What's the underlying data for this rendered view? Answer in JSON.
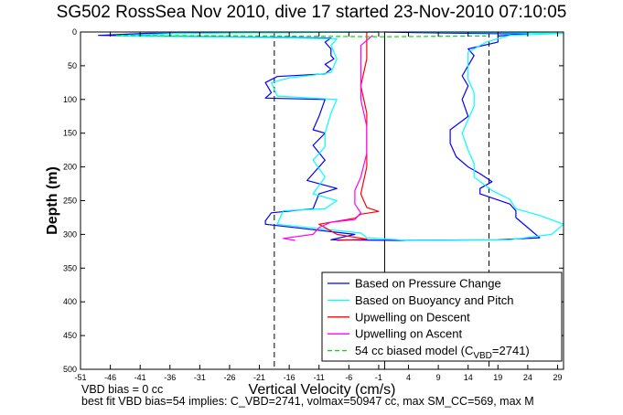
{
  "chart_data": {
    "type": "line",
    "title": "SG502 RossSea Nov 2010, dive 17 started 23-Nov-2010 07:10:05",
    "xlabel": "Vertical Velocity (cm/s)",
    "ylabel": "Depth (m)",
    "xlim": [
      -51,
      30
    ],
    "ylim": [
      500,
      0
    ],
    "y_reversed": true,
    "xticks": [
      -51,
      -46,
      -41,
      -36,
      -31,
      -26,
      -21,
      -16,
      -11,
      -6,
      -1,
      4,
      9,
      14,
      19,
      24,
      29
    ],
    "yticks": [
      0,
      50,
      100,
      150,
      200,
      250,
      300,
      350,
      400,
      450,
      500
    ],
    "grid": false,
    "legend_location": "bottom-right",
    "reference_lines": [
      {
        "x": -18.5,
        "style": "dashed"
      },
      {
        "x": 17.5,
        "style": "dashed"
      },
      {
        "x": 0,
        "style": "solid"
      }
    ],
    "series": [
      {
        "name": "Based on Pressure Change",
        "color": "#0000ff",
        "style": "solid",
        "points": [
          [
            -1,
            0
          ],
          [
            -40,
            2
          ],
          [
            -48,
            5
          ],
          [
            -28,
            7
          ],
          [
            -9,
            9
          ],
          [
            -10,
            15
          ],
          [
            -9,
            25
          ],
          [
            -9,
            35
          ],
          [
            -8.5,
            40
          ],
          [
            -10,
            48
          ],
          [
            -9,
            55
          ],
          [
            -10,
            62
          ],
          [
            -18,
            66
          ],
          [
            -20,
            75
          ],
          [
            -19,
            90
          ],
          [
            -20,
            98
          ],
          [
            -10,
            100
          ],
          [
            -11,
            125
          ],
          [
            -12,
            145
          ],
          [
            -10,
            150
          ],
          [
            -12,
            168
          ],
          [
            -10,
            190
          ],
          [
            -12,
            210
          ],
          [
            -13,
            220
          ],
          [
            -8,
            232
          ],
          [
            -11,
            240
          ],
          [
            -12,
            262
          ],
          [
            -19,
            268
          ],
          [
            -20,
            280
          ],
          [
            -20,
            285
          ],
          [
            -5,
            300
          ],
          [
            -9,
            308
          ],
          [
            2,
            309
          ],
          [
            19,
            308
          ],
          [
            26,
            305
          ],
          [
            24,
            290
          ],
          [
            22,
            275
          ],
          [
            22,
            265
          ],
          [
            21,
            255
          ],
          [
            16,
            240
          ],
          [
            16,
            232
          ],
          [
            18,
            222
          ],
          [
            16,
            210
          ],
          [
            14,
            200
          ],
          [
            12,
            185
          ],
          [
            11,
            165
          ],
          [
            11,
            145
          ],
          [
            14,
            125
          ],
          [
            13,
            100
          ],
          [
            14,
            80
          ],
          [
            13,
            65
          ],
          [
            14,
            50
          ],
          [
            15,
            35
          ],
          [
            14,
            25
          ],
          [
            19,
            15
          ],
          [
            19,
            6
          ],
          [
            24,
            3
          ],
          [
            5,
            1
          ],
          [
            0,
            0
          ]
        ]
      },
      {
        "name": "Based on Buoyancy and Pitch",
        "color": "#00ffff",
        "style": "solid",
        "points": [
          [
            -1,
            0
          ],
          [
            -35,
            2
          ],
          [
            -45,
            6
          ],
          [
            -22,
            8
          ],
          [
            -8,
            10
          ],
          [
            -9,
            20
          ],
          [
            -8,
            40
          ],
          [
            -9,
            60
          ],
          [
            -12,
            64
          ],
          [
            -16,
            68
          ],
          [
            -19,
            75
          ],
          [
            -18,
            95
          ],
          [
            -8,
            100
          ],
          [
            -9,
            120
          ],
          [
            -10,
            150
          ],
          [
            -10,
            170
          ],
          [
            -12,
            190
          ],
          [
            -10,
            215
          ],
          [
            -12,
            240
          ],
          [
            -8,
            250
          ],
          [
            -10,
            262
          ],
          [
            -17,
            265
          ],
          [
            -18,
            285
          ],
          [
            -4,
            298
          ],
          [
            -3,
            305
          ],
          [
            4,
            309
          ],
          [
            21,
            308
          ],
          [
            28,
            300
          ],
          [
            30,
            285
          ],
          [
            26,
            272
          ],
          [
            22,
            262
          ],
          [
            21,
            248
          ],
          [
            18,
            235
          ],
          [
            15,
            215
          ],
          [
            15,
            195
          ],
          [
            14,
            175
          ],
          [
            13,
            150
          ],
          [
            14,
            130
          ],
          [
            15,
            110
          ],
          [
            15,
            90
          ],
          [
            14,
            70
          ],
          [
            14,
            45
          ],
          [
            14,
            30
          ],
          [
            17,
            15
          ],
          [
            21,
            5
          ],
          [
            30,
            2
          ],
          [
            4,
            0
          ]
        ]
      },
      {
        "name": "Upwelling on Descent",
        "color": "#ff0000",
        "style": "solid",
        "points": [
          [
            -3,
            0
          ],
          [
            -3,
            10
          ],
          [
            -3,
            40
          ],
          [
            -4,
            80
          ],
          [
            -3,
            120
          ],
          [
            -3,
            160
          ],
          [
            -3,
            200
          ],
          [
            -4,
            240
          ],
          [
            -3,
            260
          ],
          [
            -1,
            266
          ],
          [
            -4,
            270
          ],
          [
            -5,
            276
          ],
          [
            -11,
            285
          ],
          [
            -8,
            300
          ],
          [
            -3,
            307
          ],
          [
            -8,
            309
          ]
        ]
      },
      {
        "name": "Upwelling on Ascent",
        "color": "#ff00ff",
        "style": "solid",
        "points": [
          [
            -2,
            5
          ],
          [
            -4,
            20
          ],
          [
            -4,
            40
          ],
          [
            -4,
            60
          ],
          [
            -4,
            80
          ],
          [
            -4,
            100
          ],
          [
            -3,
            140
          ],
          [
            -3,
            180
          ],
          [
            -4,
            215
          ],
          [
            -5,
            235
          ],
          [
            -5,
            255
          ],
          [
            -4,
            268
          ],
          [
            -5,
            278
          ],
          [
            -9,
            282
          ],
          [
            -11,
            290
          ],
          [
            -12,
            300
          ],
          [
            -17,
            306
          ],
          [
            -15,
            309
          ]
        ]
      },
      {
        "name": "54 cc biased model (C_VBD=2741)",
        "color": "#00dd00",
        "style": "dashed",
        "points": [
          [
            -45,
            5
          ],
          [
            -20,
            6
          ],
          [
            0,
            7
          ],
          [
            15,
            6
          ],
          [
            17,
            6
          ]
        ]
      }
    ]
  },
  "notes": {
    "bias": "VBD bias = 0 cc",
    "bestfit": "best fit VBD bias=54 implies: C_VBD=2741, volmax=50947 cc, max SM_CC=569, max M"
  }
}
